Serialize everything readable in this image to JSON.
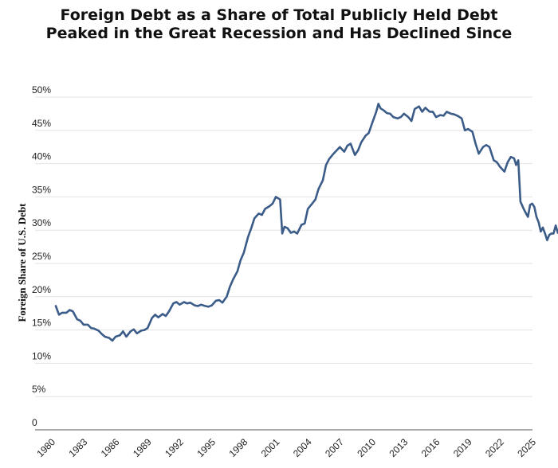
{
  "chart_data": {
    "type": "line",
    "title": "Foreign Debt as a Share of Total Publicly Held Debt",
    "subtitle": "Peaked in the Great Recession and Has Declined Since",
    "xlabel": "",
    "ylabel": "Foreign Share of U.S. Debt",
    "ylim": [
      0,
      50
    ],
    "xlim": [
      1980,
      2025
    ],
    "grid": true,
    "y_ticks": [
      0,
      5,
      10,
      15,
      20,
      25,
      30,
      35,
      40,
      45,
      50
    ],
    "y_tick_labels": [
      "0",
      "5%",
      "10%",
      "15%",
      "20%",
      "25%",
      "30%",
      "35%",
      "40%",
      "45%",
      "50%"
    ],
    "x_ticks": [
      1980,
      1983,
      1986,
      1989,
      1992,
      1995,
      1998,
      2001,
      2004,
      2007,
      2010,
      2013,
      2016,
      2019,
      2022,
      2025
    ],
    "x_tick_labels": [
      "1980",
      "1983",
      "1986",
      "1989",
      "1992",
      "1995",
      "1998",
      "2001",
      "2004",
      "2007",
      "2010",
      "2013",
      "2016",
      "2019",
      "2022",
      "2025"
    ],
    "line_color": "#3b5c88",
    "series": [
      {
        "name": "",
        "points": [
          [
            1980.0,
            18.6
          ],
          [
            1980.3,
            17.3
          ],
          [
            1980.6,
            17.6
          ],
          [
            1981.0,
            17.6
          ],
          [
            1981.3,
            18.0
          ],
          [
            1981.6,
            17.8
          ],
          [
            1982.0,
            16.6
          ],
          [
            1982.3,
            16.4
          ],
          [
            1982.6,
            15.8
          ],
          [
            1983.0,
            15.8
          ],
          [
            1983.3,
            15.3
          ],
          [
            1983.6,
            15.2
          ],
          [
            1984.0,
            14.9
          ],
          [
            1984.3,
            14.4
          ],
          [
            1984.6,
            14.0
          ],
          [
            1985.0,
            13.8
          ],
          [
            1985.3,
            13.4
          ],
          [
            1985.6,
            14.0
          ],
          [
            1986.0,
            14.2
          ],
          [
            1986.3,
            14.8
          ],
          [
            1986.6,
            14.0
          ],
          [
            1987.0,
            14.8
          ],
          [
            1987.3,
            15.1
          ],
          [
            1987.6,
            14.5
          ],
          [
            1988.0,
            14.9
          ],
          [
            1988.3,
            15.0
          ],
          [
            1988.6,
            15.3
          ],
          [
            1989.0,
            16.8
          ],
          [
            1989.3,
            17.3
          ],
          [
            1989.6,
            16.9
          ],
          [
            1990.0,
            17.4
          ],
          [
            1990.3,
            17.1
          ],
          [
            1990.6,
            17.8
          ],
          [
            1991.0,
            19.0
          ],
          [
            1991.3,
            19.2
          ],
          [
            1991.6,
            18.8
          ],
          [
            1992.0,
            19.2
          ],
          [
            1992.3,
            19.0
          ],
          [
            1992.6,
            19.1
          ],
          [
            1993.0,
            18.7
          ],
          [
            1993.3,
            18.6
          ],
          [
            1993.6,
            18.8
          ],
          [
            1994.0,
            18.6
          ],
          [
            1994.3,
            18.5
          ],
          [
            1994.6,
            18.7
          ],
          [
            1995.0,
            19.4
          ],
          [
            1995.3,
            19.5
          ],
          [
            1995.6,
            19.1
          ],
          [
            1996.0,
            20.0
          ],
          [
            1996.3,
            21.5
          ],
          [
            1996.6,
            22.6
          ],
          [
            1997.0,
            23.8
          ],
          [
            1997.3,
            25.5
          ],
          [
            1997.6,
            26.6
          ],
          [
            1998.0,
            29.0
          ],
          [
            1998.3,
            30.3
          ],
          [
            1998.6,
            31.8
          ],
          [
            1999.0,
            32.5
          ],
          [
            1999.3,
            32.3
          ],
          [
            1999.6,
            33.2
          ],
          [
            2000.0,
            33.6
          ],
          [
            2000.3,
            34.0
          ],
          [
            2000.6,
            35.0
          ],
          [
            2001.0,
            34.6
          ],
          [
            2001.2,
            29.5
          ],
          [
            2001.4,
            30.5
          ],
          [
            2001.7,
            30.3
          ],
          [
            2002.0,
            29.6
          ],
          [
            2002.3,
            29.8
          ],
          [
            2002.6,
            29.5
          ],
          [
            2003.0,
            30.8
          ],
          [
            2003.3,
            31.0
          ],
          [
            2003.6,
            33.2
          ],
          [
            2004.0,
            34.0
          ],
          [
            2004.3,
            34.6
          ],
          [
            2004.6,
            36.2
          ],
          [
            2005.0,
            37.5
          ],
          [
            2005.3,
            39.8
          ],
          [
            2005.6,
            40.7
          ],
          [
            2006.0,
            41.5
          ],
          [
            2006.3,
            42.0
          ],
          [
            2006.6,
            42.5
          ],
          [
            2007.0,
            41.8
          ],
          [
            2007.3,
            42.7
          ],
          [
            2007.6,
            43.0
          ],
          [
            2008.0,
            41.3
          ],
          [
            2008.3,
            42.0
          ],
          [
            2008.6,
            43.2
          ],
          [
            2009.0,
            44.2
          ],
          [
            2009.3,
            44.6
          ],
          [
            2009.6,
            46.0
          ],
          [
            2010.0,
            47.8
          ],
          [
            2010.2,
            49.0
          ],
          [
            2010.4,
            48.3
          ],
          [
            2010.7,
            48.0
          ],
          [
            2011.0,
            47.6
          ],
          [
            2011.3,
            47.5
          ],
          [
            2011.6,
            47.0
          ],
          [
            2012.0,
            46.8
          ],
          [
            2012.3,
            47.0
          ],
          [
            2012.6,
            47.5
          ],
          [
            2013.0,
            47.0
          ],
          [
            2013.3,
            46.4
          ],
          [
            2013.6,
            48.2
          ],
          [
            2014.0,
            48.6
          ],
          [
            2014.3,
            47.8
          ],
          [
            2014.6,
            48.4
          ],
          [
            2015.0,
            47.8
          ],
          [
            2015.3,
            47.8
          ],
          [
            2015.6,
            47.0
          ],
          [
            2016.0,
            47.3
          ],
          [
            2016.3,
            47.2
          ],
          [
            2016.6,
            47.8
          ],
          [
            2017.0,
            47.5
          ],
          [
            2017.3,
            47.4
          ],
          [
            2017.6,
            47.2
          ],
          [
            2018.0,
            46.8
          ],
          [
            2018.3,
            45.0
          ],
          [
            2018.6,
            45.2
          ],
          [
            2019.0,
            44.8
          ],
          [
            2019.3,
            43.0
          ],
          [
            2019.6,
            41.5
          ],
          [
            2020.0,
            42.5
          ],
          [
            2020.3,
            42.8
          ],
          [
            2020.6,
            42.5
          ],
          [
            2021.0,
            40.5
          ],
          [
            2021.3,
            40.2
          ],
          [
            2021.6,
            39.5
          ],
          [
            2022.0,
            38.8
          ],
          [
            2022.3,
            40.2
          ],
          [
            2022.6,
            41.0
          ],
          [
            2022.9,
            40.8
          ],
          [
            2023.1,
            39.8
          ],
          [
            2023.3,
            40.5
          ],
          [
            2023.5,
            34.3
          ],
          [
            2023.8,
            33.2
          ],
          [
            2024.0,
            32.6
          ],
          [
            2024.2,
            32.0
          ],
          [
            2024.4,
            33.8
          ],
          [
            2024.6,
            34.0
          ],
          [
            2024.8,
            33.5
          ],
          [
            2025.0,
            32.0
          ],
          [
            2025.2,
            31.2
          ],
          [
            2025.4,
            29.8
          ],
          [
            2025.6,
            30.4
          ],
          [
            2025.8,
            29.5
          ],
          [
            2026.0,
            28.5
          ],
          [
            2026.2,
            29.3
          ],
          [
            2026.4,
            29.5
          ],
          [
            2026.6,
            29.5
          ],
          [
            2026.8,
            30.7
          ],
          [
            2027.0,
            29.6
          ]
        ]
      }
    ]
  }
}
